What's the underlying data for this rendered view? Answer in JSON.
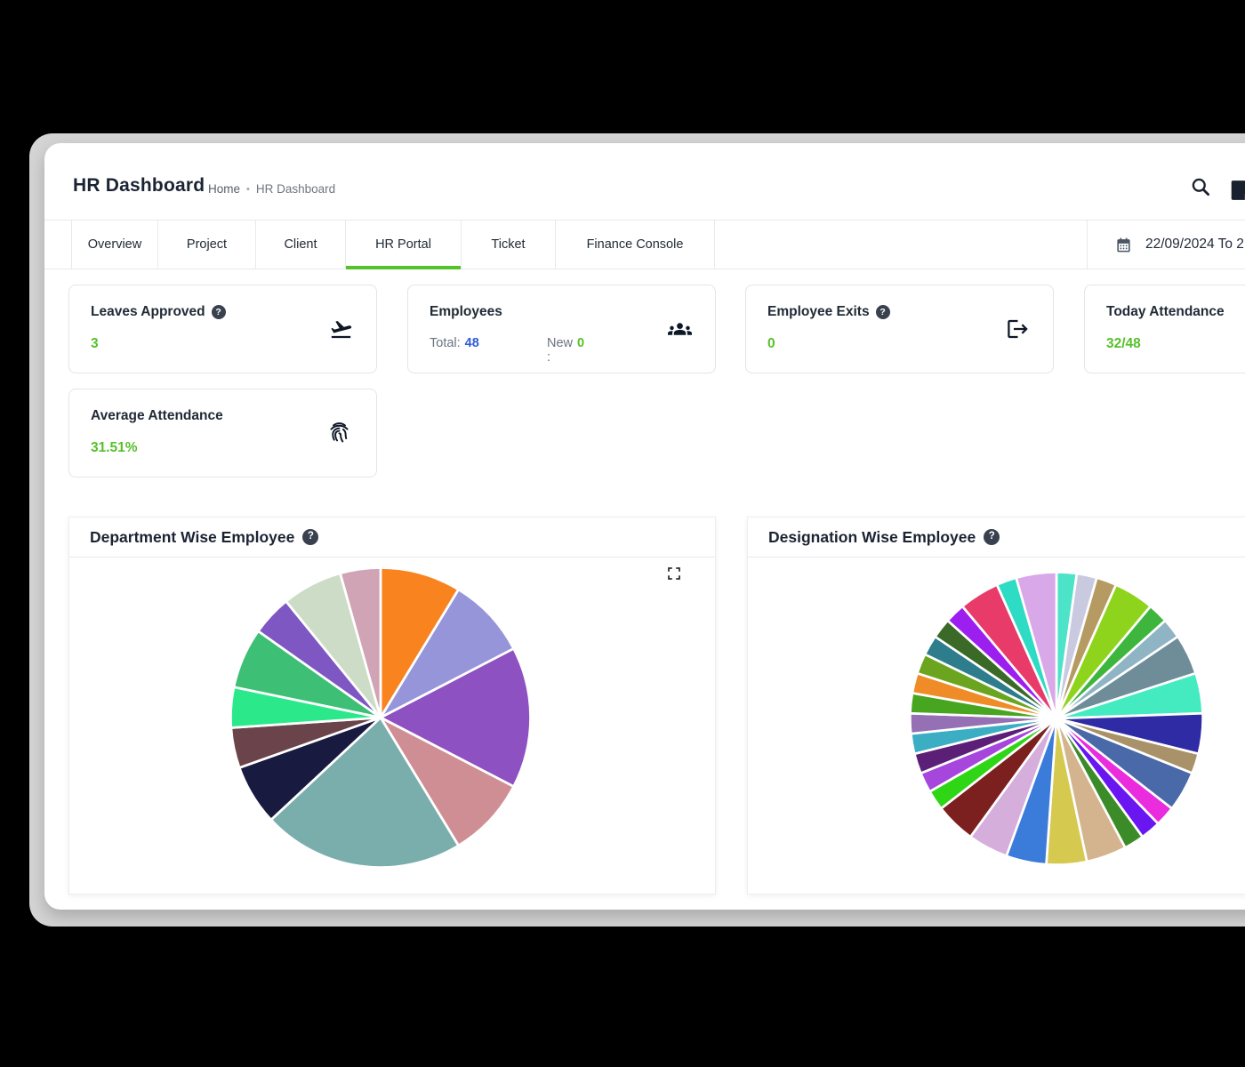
{
  "header": {
    "title": "HR Dashboard",
    "breadcrumb": {
      "home": "Home",
      "separator": "•",
      "current": "HR Dashboard"
    },
    "icons": [
      "search",
      "note"
    ]
  },
  "tabs": [
    {
      "label": "Overview",
      "active": false
    },
    {
      "label": "Project",
      "active": false
    },
    {
      "label": "Client",
      "active": false
    },
    {
      "label": "HR Portal",
      "active": true
    },
    {
      "label": "Ticket",
      "active": false
    },
    {
      "label": "Finance Console",
      "active": false
    }
  ],
  "date_filter": {
    "icon": "calendar",
    "range_text": "22/09/2024 To 2"
  },
  "stat_cards": {
    "leaves_approved": {
      "title": "Leaves Approved",
      "has_help": true,
      "value": "3",
      "icon": "plane-takeoff"
    },
    "employees": {
      "title": "Employees",
      "total_label": "Total:",
      "total_value": "48",
      "new_label": "New :",
      "new_value": "0",
      "icon": "people-group"
    },
    "employee_exits": {
      "title": "Employee Exits",
      "has_help": true,
      "value": "0",
      "icon": "exit-arrow"
    },
    "today_attendance": {
      "title": "Today Attendance",
      "value": "32/48"
    },
    "average_attendance": {
      "title": "Average Attendance",
      "value": "31.51%",
      "icon": "fingerprint"
    }
  },
  "colors": {
    "accent_green": "#54c327",
    "value_green": "#56c02b",
    "value_blue": "#2f5cd8",
    "backdrop_gray": "#d4d4d4",
    "text_dark": "#1b2434",
    "border_light": "#e7e9eb"
  },
  "chart_data": [
    {
      "type": "pie",
      "title": "Department Wise Employee",
      "has_help": true,
      "has_expand_control": true,
      "legend": "none",
      "data_labels": "none",
      "start_angle_deg": 0,
      "slices": [
        {
          "value": 4,
          "color": "#F8831F"
        },
        {
          "value": 4,
          "color": "#9695DA"
        },
        {
          "value": 7,
          "color": "#8E51C1"
        },
        {
          "value": 4,
          "color": "#CF8E94"
        },
        {
          "value": 10,
          "color": "#7AAEAC"
        },
        {
          "value": 3,
          "color": "#191A40"
        },
        {
          "value": 2,
          "color": "#6B434A"
        },
        {
          "value": 2,
          "color": "#2BE98B"
        },
        {
          "value": 3,
          "color": "#3DBF75"
        },
        {
          "value": 2,
          "color": "#7E57C2"
        },
        {
          "value": 3,
          "color": "#CDDCC7"
        },
        {
          "value": 2,
          "color": "#D0A3B5"
        }
      ]
    },
    {
      "type": "pie",
      "title": "Designation Wise Employee",
      "has_help": true,
      "has_expand_control": false,
      "legend": "none",
      "data_labels": "none",
      "start_angle_deg": 0,
      "slices": [
        {
          "value": 1,
          "color": "#4DE3C9"
        },
        {
          "value": 1,
          "color": "#C9CADF"
        },
        {
          "value": 1,
          "color": "#B59A62"
        },
        {
          "value": 2,
          "color": "#8FD41C"
        },
        {
          "value": 1,
          "color": "#3EB53C"
        },
        {
          "value": 1,
          "color": "#8FB4C3"
        },
        {
          "value": 2,
          "color": "#6E8D99"
        },
        {
          "value": 2,
          "color": "#44EAC0"
        },
        {
          "value": 2,
          "color": "#2E2BA5"
        },
        {
          "value": 1,
          "color": "#A9926A"
        },
        {
          "value": 2,
          "color": "#4A69A8"
        },
        {
          "value": 1,
          "color": "#EA2BDE"
        },
        {
          "value": 1,
          "color": "#6A16F0"
        },
        {
          "value": 1,
          "color": "#3B8C28"
        },
        {
          "value": 2,
          "color": "#D4B48E"
        },
        {
          "value": 2,
          "color": "#D6C94F"
        },
        {
          "value": 2,
          "color": "#3B7BD9"
        },
        {
          "value": 2,
          "color": "#D5AEDC"
        },
        {
          "value": 2,
          "color": "#7C1F1F"
        },
        {
          "value": 1,
          "color": "#2ED615"
        },
        {
          "value": 1,
          "color": "#A646DC"
        },
        {
          "value": 1,
          "color": "#5C1F78"
        },
        {
          "value": 1,
          "color": "#3BAEC4"
        },
        {
          "value": 1,
          "color": "#9670B4"
        },
        {
          "value": 1,
          "color": "#48A51F"
        },
        {
          "value": 1,
          "color": "#F08C28"
        },
        {
          "value": 1,
          "color": "#6BA51F"
        },
        {
          "value": 1,
          "color": "#2E7D8C"
        },
        {
          "value": 1,
          "color": "#3B6928"
        },
        {
          "value": 1,
          "color": "#9C1FF0"
        },
        {
          "value": 2,
          "color": "#E83B69"
        },
        {
          "value": 1,
          "color": "#2EDBC4"
        },
        {
          "value": 2,
          "color": "#D9A8E8"
        }
      ]
    }
  ]
}
